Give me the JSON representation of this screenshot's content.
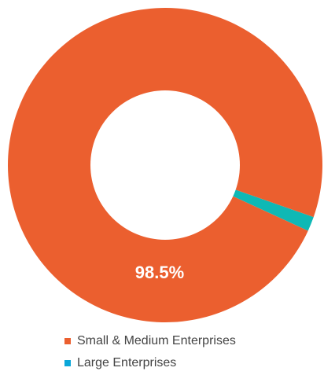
{
  "chart_data": {
    "type": "pie",
    "donut": true,
    "series": [
      {
        "name": "Small & Medium Enterprises",
        "value": 98.5,
        "label": "98.5%",
        "color": "#EB5F2F"
      },
      {
        "name": "Large Enterprises",
        "value": 1.5,
        "label": "",
        "color": "#0FB8B5"
      }
    ],
    "legend": {
      "position": "bottom",
      "items": [
        {
          "label": "Small & Medium Enterprises",
          "color": "#EB5F2F"
        },
        {
          "label": "Large Enterprises",
          "color": "#0BA7D9"
        }
      ]
    }
  }
}
